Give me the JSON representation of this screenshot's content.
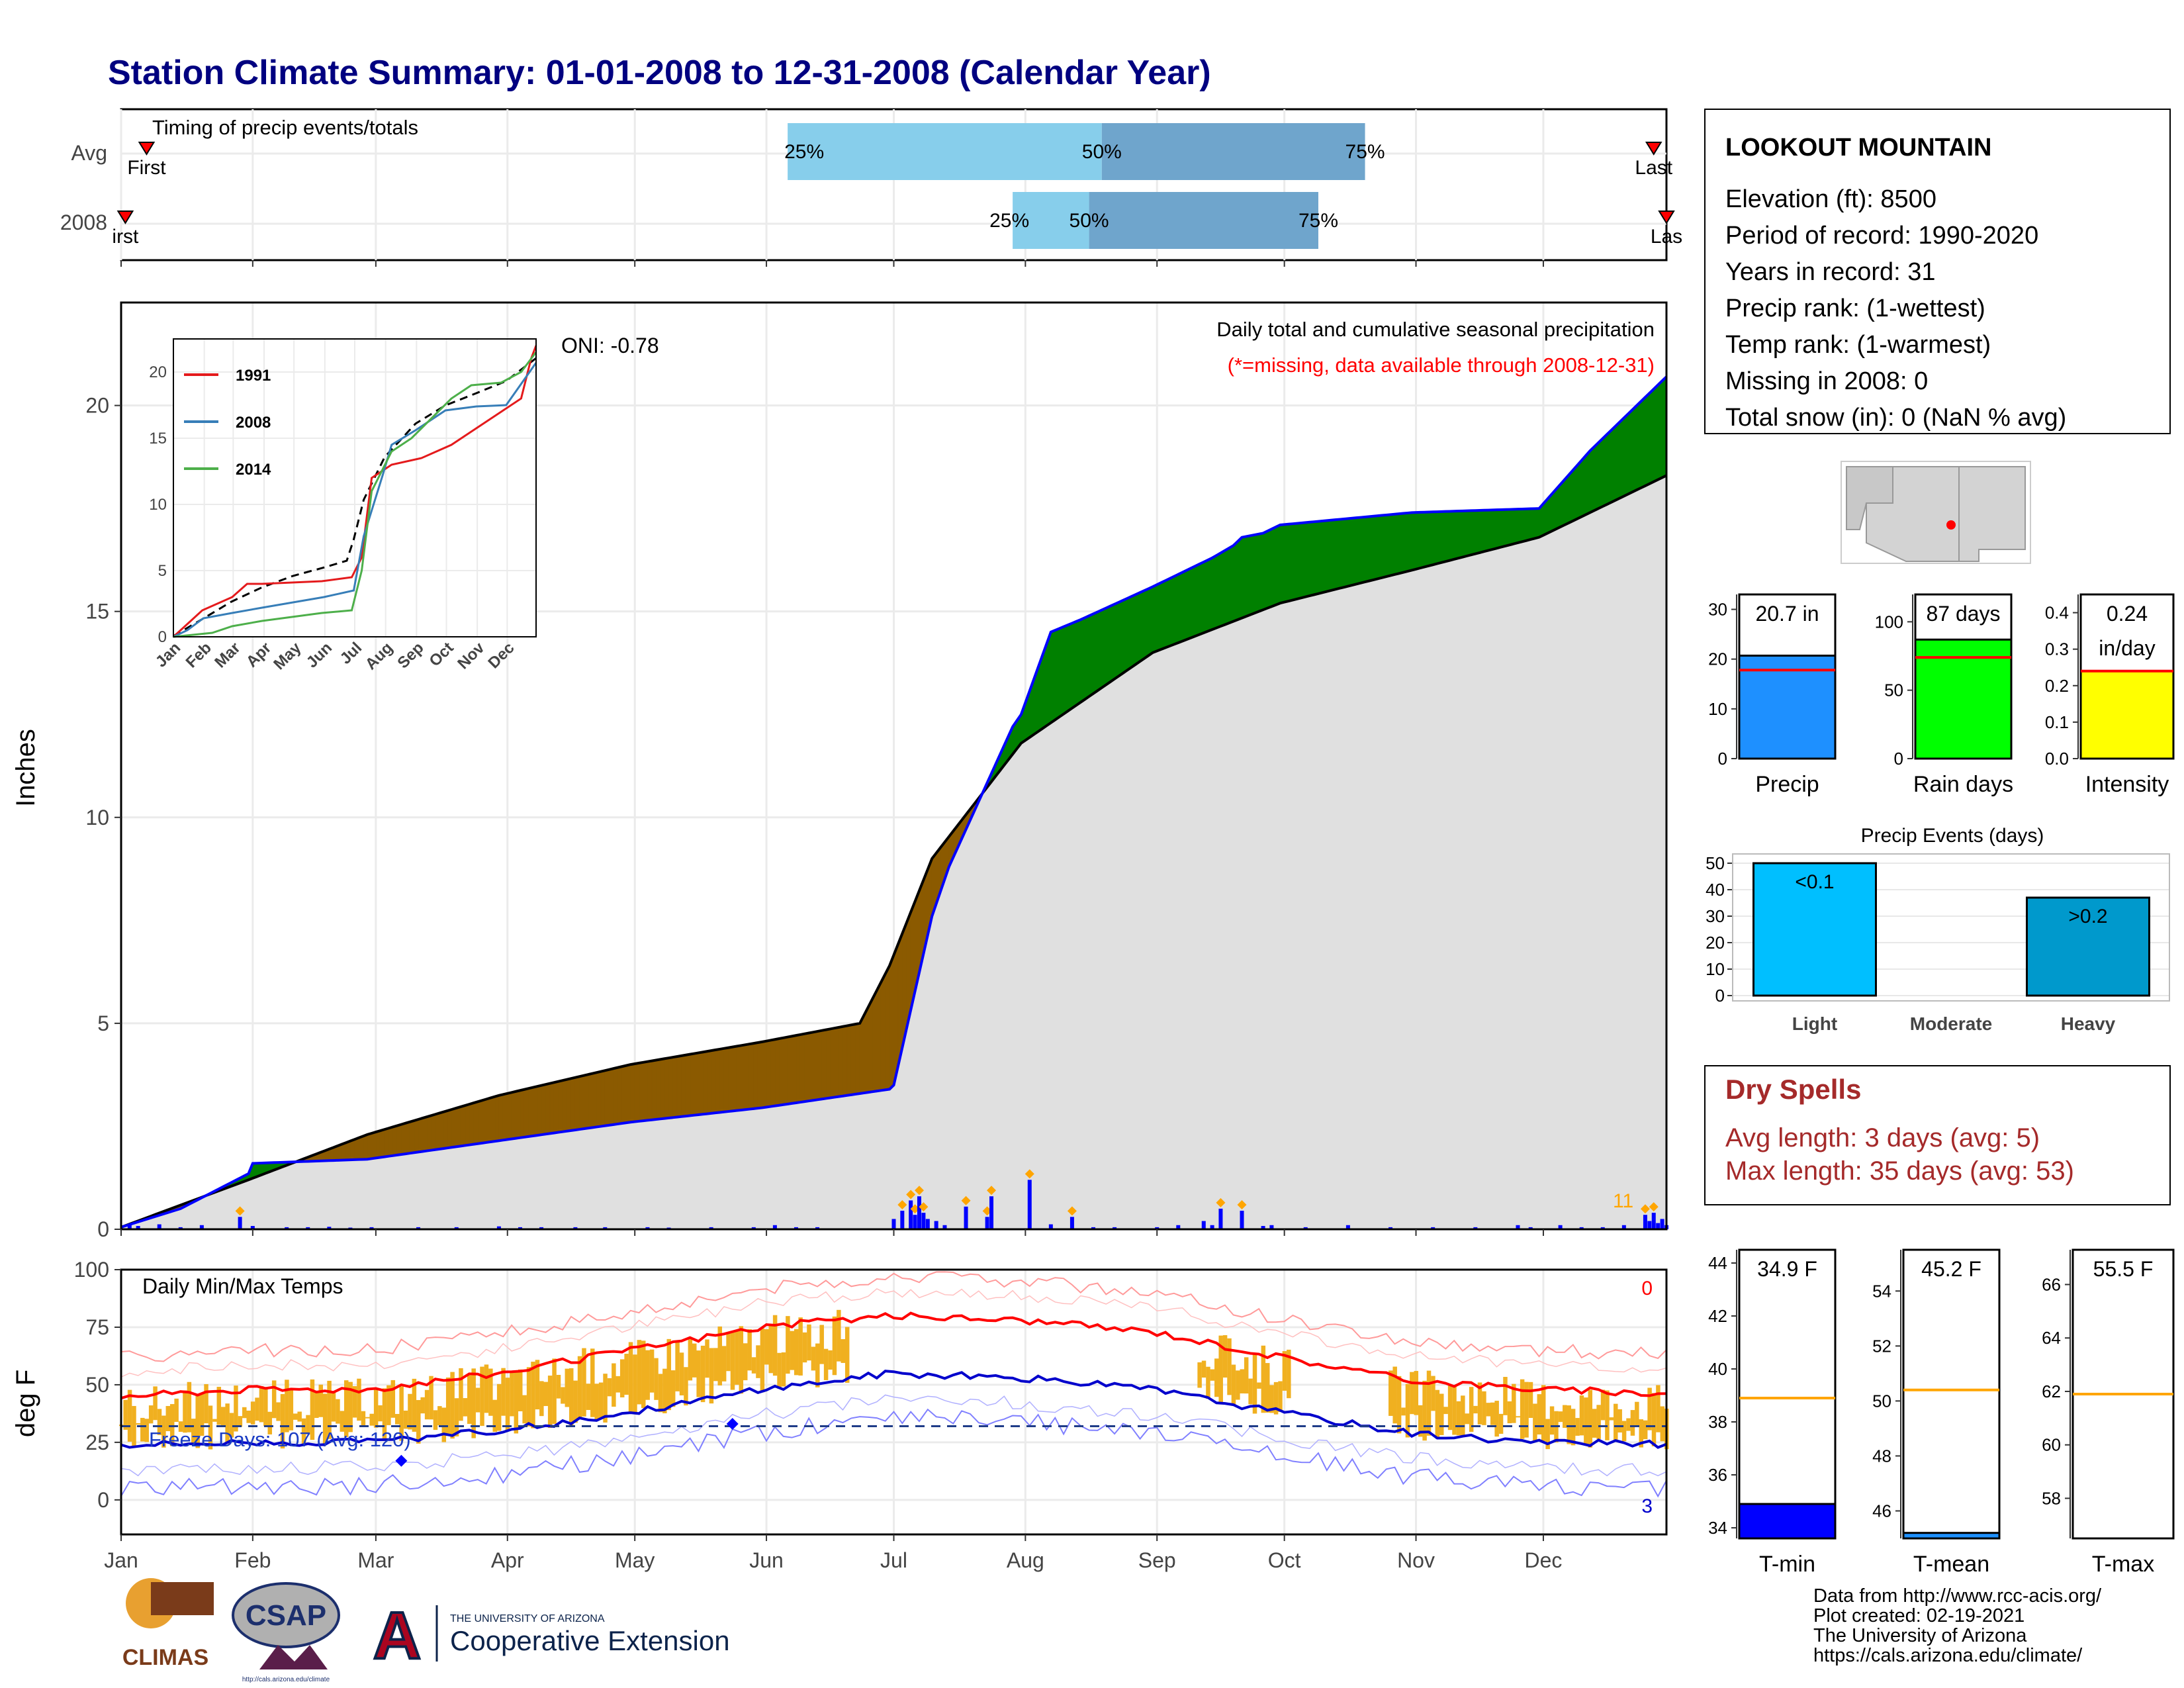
{
  "title": "Station Climate Summary: 01-01-2008 to 12-31-2008 (Calendar Year)",
  "station": {
    "name": "LOOKOUT MOUNTAIN",
    "lines": [
      "Elevation (ft): 8500",
      "Period of record: 1990-2020",
      "Years in record: 31",
      "Precip rank:  (1-wettest)",
      "Temp rank:  (1-warmest)",
      "Missing in 2008: 0",
      "Total snow (in): 0 (NaN % avg)"
    ]
  },
  "colors": {
    "title": "#000080",
    "precip_bar": "#0000ff",
    "above_avg": "#008000",
    "below_avg": "#8B5A00",
    "normal_fill": "#e0e0e0",
    "avg_line": "#000000",
    "t_max_avg": "#ff0000",
    "t_min_avg": "#0000cc",
    "temp_bar": "#f0b020",
    "dry_spells": "#a52a2a",
    "missing_note": "#ff0000",
    "timing_light": "#87ceeb",
    "timing_dark": "#6fa5cc"
  },
  "months": [
    "Jan",
    "Feb",
    "Mar",
    "Apr",
    "May",
    "Jun",
    "Jul",
    "Aug",
    "Sep",
    "Oct",
    "Nov",
    "Dec"
  ],
  "timing": {
    "label": "Timing of precip events/totals",
    "rows": [
      {
        "name": "Avg",
        "first_day": 7,
        "last_day": 362,
        "p25": 158,
        "p50": 232,
        "p75": 294,
        "first_label": "First",
        "last_label": "Last"
      },
      {
        "name": "2008",
        "first_day": 2,
        "last_day": 365,
        "p25": 211,
        "p50": 229,
        "p75": 283,
        "first_label": "irst",
        "last_label": "Las"
      }
    ],
    "p25_label": "25%",
    "p50_label": "50%",
    "p75_label": "75%"
  },
  "precip_panel": {
    "ylabel": "Inches",
    "y_ticks": [
      0,
      5,
      10,
      15,
      20
    ],
    "ylim": [
      0,
      22.5
    ],
    "oni_label": "ONI: -0.78",
    "header1": "Daily total and cumulative seasonal precipitation",
    "header2": "(*=missing, data available through 2008-12-31)",
    "corner_count": "11"
  },
  "inset": {
    "y_ticks": [
      0,
      5,
      10,
      15,
      20
    ],
    "legend": [
      "1991",
      "2008",
      "2014"
    ],
    "months": [
      "Jan",
      "Feb",
      "Mar",
      "Apr",
      "May",
      "Jun",
      "Jul",
      "Aug",
      "Sep",
      "Oct",
      "Nov",
      "Dec"
    ]
  },
  "temp_panel": {
    "ylabel": "deg F",
    "label": "Daily Min/Max Temps",
    "y_ticks": [
      0,
      25,
      50,
      75,
      100
    ],
    "ylim": [
      -15,
      100
    ],
    "freeze_label": "Freeze Days: 107 (Avg: 120)",
    "top_count": "0",
    "bottom_count": "3"
  },
  "bars_top": [
    {
      "name": "Precip",
      "value_label": "20.7 in",
      "value": 20.7,
      "avg": 17.8,
      "ymax": 33,
      "ticks": [
        0,
        10,
        20,
        30
      ],
      "color": "#1e90ff",
      "label_lines": [
        "20.7 in"
      ]
    },
    {
      "name": "Rain days",
      "value_label": "87 days",
      "value": 87,
      "avg": 74,
      "ymax": 120,
      "ticks": [
        0,
        50,
        100
      ],
      "color": "#00ff00",
      "label_lines": [
        "87 days"
      ]
    },
    {
      "name": "Intensity",
      "value_label": "0.24 in/day",
      "value": 0.24,
      "avg": 0.24,
      "ymax": 0.45,
      "ticks": [
        "0.0",
        "0.1",
        "0.2",
        "0.3",
        "0.4"
      ],
      "tick_vals": [
        0,
        0.1,
        0.2,
        0.3,
        0.4
      ],
      "color": "#ffff00",
      "label_lines": [
        "0.24",
        "in/day"
      ]
    }
  ],
  "precip_events": {
    "title": "Precip Events (days)",
    "categories": [
      "Light",
      "Moderate",
      "Heavy"
    ],
    "values": [
      50,
      0,
      37
    ],
    "labels": [
      "<0.1",
      "",
      ">0.2"
    ],
    "colors": [
      "#00bfff",
      "#00bfff",
      "#0099cc"
    ],
    "ticks": [
      0,
      10,
      20,
      30,
      40,
      50
    ]
  },
  "dry_spells": {
    "title": "Dry Spells",
    "line1": "Avg length: 3 days (avg: 5)",
    "line2": "Max length: 35 days (avg: 53)"
  },
  "bars_temp": [
    {
      "name": "T-min",
      "value_label": "34.9 F",
      "value": 34.9,
      "avg": 38.9,
      "ymin": 33.6,
      "ymax": 44.5,
      "ticks": [
        34,
        36,
        38,
        40,
        42,
        44
      ],
      "color": "#0000ff"
    },
    {
      "name": "T-mean",
      "value_label": "45.2 F",
      "value": 45.2,
      "avg": 50.4,
      "ymin": 45.0,
      "ymax": 55.5,
      "ticks": [
        46,
        48,
        50,
        52,
        54
      ],
      "color": "#1e90ff"
    },
    {
      "name": "T-max",
      "value_label": "55.5 F",
      "value": 55.5,
      "avg": 61.9,
      "ymin": 56.5,
      "ymax": 67.3,
      "ticks": [
        58,
        60,
        62,
        64,
        66
      ],
      "color": "#1e90ff"
    }
  ],
  "footer": {
    "lines": [
      "Data from http://www.rcc-acis.org/",
      "Plot created: 02-19-2021",
      "The University of Arizona",
      "https://cals.arizona.edu/climate/"
    ],
    "climas": "CLIMAS",
    "csap": "CSAP",
    "csap_url": "http://cals.arizona.edu/climate",
    "ua_small": "THE UNIVERSITY OF ARIZONA",
    "ua_big": "Cooperative Extension"
  },
  "chart_data": {
    "type": "line",
    "x_unit": "day of year 2008",
    "series": [
      {
        "name": "2008",
        "x": [
          1,
          15,
          31,
          32,
          59,
          90,
          121,
          152,
          182,
          183,
          192,
          196,
          211,
          213,
          220,
          227,
          244,
          258,
          263,
          265,
          270,
          274,
          305,
          335,
          347,
          365
        ],
        "y": [
          0.05,
          0.5,
          1.35,
          1.6,
          1.7,
          2.15,
          2.6,
          2.95,
          3.4,
          3.5,
          7.6,
          8.8,
          12.2,
          12.5,
          14.5,
          14.8,
          15.6,
          16.3,
          16.6,
          16.8,
          16.9,
          17.1,
          17.4,
          17.5,
          18.9,
          20.7
        ]
      }
    ],
    "average_cumulative": {
      "x": [
        1,
        31,
        59,
        90,
        121,
        152,
        175,
        182,
        192,
        213,
        244,
        274,
        305,
        335,
        365
      ],
      "y": [
        0.05,
        1.2,
        2.3,
        3.25,
        4.0,
        4.55,
        5.0,
        6.4,
        9.0,
        11.8,
        14.0,
        15.2,
        16.0,
        16.8,
        18.3
      ]
    },
    "daily_precip": {
      "days": [
        3,
        5,
        10,
        15,
        20,
        29,
        32,
        40,
        45,
        50,
        55,
        60,
        71,
        80,
        90,
        95,
        100,
        108,
        115,
        125,
        130,
        140,
        150,
        155,
        160,
        165,
        183,
        185,
        187,
        188,
        189,
        190,
        191,
        193,
        195,
        200,
        205,
        206,
        215,
        220,
        225,
        230,
        235,
        245,
        250,
        256,
        258,
        260,
        265,
        270,
        272,
        280,
        290,
        300,
        310,
        320,
        330,
        333,
        340,
        345,
        350,
        355,
        360,
        361,
        362,
        363,
        364,
        365
      ],
      "inches": [
        0.1,
        0.08,
        0.12,
        0.05,
        0.1,
        0.3,
        0.08,
        0.05,
        0.05,
        0.06,
        0.04,
        0.05,
        0.05,
        0.05,
        0.07,
        0.05,
        0.05,
        0.05,
        0.05,
        0.05,
        0.04,
        0.05,
        0.05,
        0.1,
        0.05,
        0.05,
        0.25,
        0.45,
        0.7,
        0.35,
        0.8,
        0.4,
        0.25,
        0.2,
        0.1,
        0.55,
        0.3,
        0.8,
        1.2,
        0.12,
        0.3,
        0.05,
        0.05,
        0.05,
        0.1,
        0.2,
        0.1,
        0.5,
        0.45,
        0.08,
        0.1,
        0.05,
        0.1,
        0.05,
        0.05,
        0.05,
        0.1,
        0.05,
        0.1,
        0.05,
        0.05,
        0.1,
        0.35,
        0.2,
        0.4,
        0.15,
        0.25,
        0.1
      ]
    },
    "inset_series": [
      {
        "name": "1991",
        "x": [
          1,
          30,
          60,
          75,
          90,
          150,
          180,
          190,
          200,
          220,
          250,
          280,
          300,
          330,
          350,
          360,
          365
        ],
        "y": [
          0,
          2,
          3,
          4,
          4,
          4.2,
          4.5,
          6,
          12,
          13,
          13.5,
          14.5,
          15.5,
          17,
          18,
          21,
          22
        ]
      },
      {
        "name": "2008",
        "x": [
          1,
          15,
          31,
          60,
          90,
          121,
          152,
          182,
          192,
          211,
          220,
          244,
          274,
          305,
          335,
          365
        ],
        "y": [
          0,
          0.5,
          1.4,
          1.8,
          2.2,
          2.6,
          3,
          3.5,
          7.6,
          12.2,
          14.5,
          15.6,
          17.1,
          17.4,
          17.5,
          20.7
        ]
      },
      {
        "name": "2014",
        "x": [
          1,
          40,
          60,
          90,
          120,
          150,
          180,
          190,
          200,
          220,
          240,
          260,
          280,
          300,
          330,
          350,
          365
        ],
        "y": [
          0,
          0.3,
          0.8,
          1.2,
          1.5,
          1.8,
          2,
          5,
          11,
          14,
          15,
          16.5,
          18,
          19,
          19.2,
          20,
          21.5
        ]
      }
    ],
    "avg_tmax": {
      "x": [
        1,
        31,
        59,
        90,
        121,
        152,
        182,
        213,
        244,
        274,
        305,
        335,
        365
      ],
      "y": [
        45,
        48,
        48,
        55,
        65,
        75,
        80,
        78,
        73,
        62,
        52,
        48,
        46
      ]
    },
    "avg_tmin": {
      "x": [
        1,
        31,
        59,
        90,
        121,
        152,
        182,
        213,
        244,
        274,
        305,
        335,
        365
      ],
      "y": [
        24,
        25,
        25,
        30,
        38,
        48,
        55,
        53,
        48,
        38,
        29,
        25,
        24
      ]
    }
  }
}
